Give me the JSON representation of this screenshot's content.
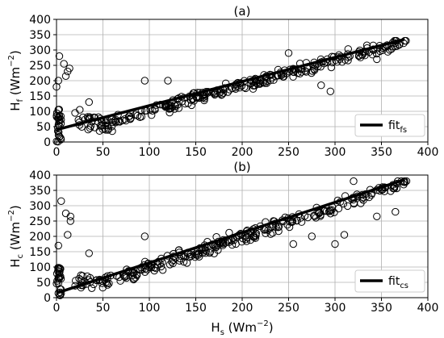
{
  "chart_data": [
    {
      "type": "scatter",
      "title": "(a)",
      "xlabel": "",
      "ylabel": {
        "main": "H",
        "sub": "f",
        "unit": "Wm",
        "exp": "−2"
      },
      "xlim": [
        0,
        400
      ],
      "ylim": [
        0,
        400
      ],
      "xticks": [
        0,
        50,
        100,
        150,
        200,
        250,
        300,
        350,
        400
      ],
      "yticks": [
        0,
        50,
        100,
        150,
        200,
        250,
        300,
        350,
        400
      ],
      "grid": true,
      "legend": {
        "position": "lower-right",
        "entries": [
          {
            "main": "fit",
            "sub": "fs"
          }
        ]
      },
      "fit": {
        "x": [
          0,
          375
        ],
        "y": [
          40,
          335
        ]
      },
      "clusters": [
        {
          "x": [
            0,
            5
          ],
          "y": [
            0,
            110
          ],
          "n": 28
        },
        {
          "x": [
            20,
            60
          ],
          "y": [
            35,
            85
          ],
          "n": 40
        },
        {
          "x": [
            60,
            380
          ],
          "y": [
            50,
            330
          ],
          "n": 260,
          "trend": {
            "x": [
              40,
              375
            ],
            "y": [
              50,
              330
            ],
            "spread": 28
          }
        }
      ],
      "outliers": [
        {
          "x": 0,
          "y": 180
        },
        {
          "x": 2,
          "y": 200
        },
        {
          "x": 3,
          "y": 280
        },
        {
          "x": 8,
          "y": 255
        },
        {
          "x": 12,
          "y": 230
        },
        {
          "x": 14,
          "y": 240
        },
        {
          "x": 10,
          "y": 215
        },
        {
          "x": 20,
          "y": 95
        },
        {
          "x": 25,
          "y": 105
        },
        {
          "x": 35,
          "y": 130
        },
        {
          "x": 95,
          "y": 200
        },
        {
          "x": 120,
          "y": 200
        },
        {
          "x": 230,
          "y": 220
        },
        {
          "x": 285,
          "y": 185
        },
        {
          "x": 295,
          "y": 165
        },
        {
          "x": 345,
          "y": 270
        },
        {
          "x": 250,
          "y": 290
        }
      ]
    },
    {
      "type": "scatter",
      "title": "(b)",
      "xlabel": {
        "main": "H",
        "sub": "s",
        "unit": "Wm",
        "exp": "−2"
      },
      "ylabel": {
        "main": "H",
        "sub": "c",
        "unit": "Wm",
        "exp": "−2"
      },
      "xlim": [
        0,
        400
      ],
      "ylim": [
        0,
        400
      ],
      "xticks": [
        0,
        50,
        100,
        150,
        200,
        250,
        300,
        350,
        400
      ],
      "yticks": [
        0,
        50,
        100,
        150,
        200,
        250,
        300,
        350,
        400
      ],
      "grid": true,
      "legend": {
        "position": "lower-right",
        "entries": [
          {
            "main": "fit",
            "sub": "cs"
          }
        ]
      },
      "fit": {
        "x": [
          0,
          375
        ],
        "y": [
          15,
          385
        ]
      },
      "clusters": [
        {
          "x": [
            0,
            5
          ],
          "y": [
            0,
            100
          ],
          "n": 28
        },
        {
          "x": [
            20,
            60
          ],
          "y": [
            30,
            75
          ],
          "n": 35
        },
        {
          "x": [
            60,
            380
          ],
          "y": [
            45,
            380
          ],
          "n": 250,
          "trend": {
            "x": [
              40,
              375
            ],
            "y": [
              35,
              375
            ],
            "spread": 32
          }
        }
      ],
      "outliers": [
        {
          "x": 2,
          "y": 170
        },
        {
          "x": 5,
          "y": 315
        },
        {
          "x": 10,
          "y": 275
        },
        {
          "x": 15,
          "y": 265
        },
        {
          "x": 15,
          "y": 250
        },
        {
          "x": 12,
          "y": 205
        },
        {
          "x": 35,
          "y": 145
        },
        {
          "x": 95,
          "y": 200
        },
        {
          "x": 255,
          "y": 175
        },
        {
          "x": 275,
          "y": 200
        },
        {
          "x": 300,
          "y": 175
        },
        {
          "x": 310,
          "y": 205
        },
        {
          "x": 320,
          "y": 380
        },
        {
          "x": 345,
          "y": 265
        },
        {
          "x": 365,
          "y": 280
        },
        {
          "x": 215,
          "y": 210
        }
      ]
    }
  ]
}
